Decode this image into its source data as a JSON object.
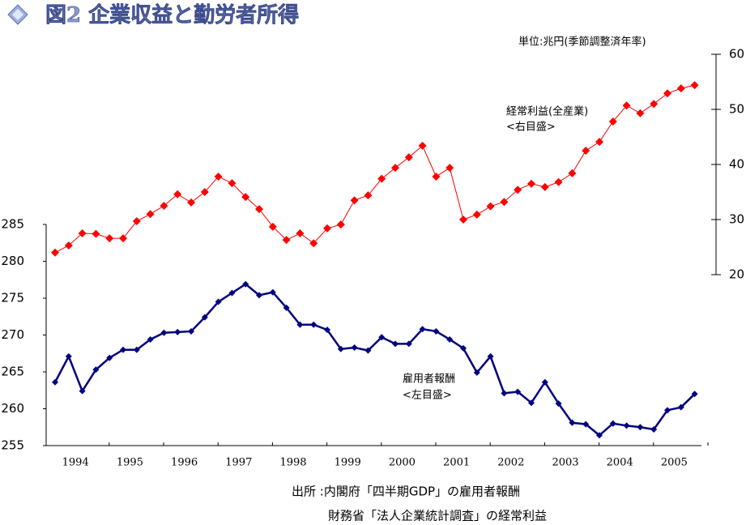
{
  "chart_data": {
    "type": "line",
    "title": "図2 企業収益と勤労者所得",
    "unit_note": "単位:兆円(季節調整済年率)",
    "source_lines": [
      "出所 :内閣府「四半期GDP」の雇用者報酬",
      "財務省「法人企業統計調査」の経常利益"
    ],
    "categories": [
      null,
      "1994",
      null,
      null,
      null,
      "1995",
      null,
      null,
      null,
      "1996",
      null,
      null,
      null,
      "1997",
      null,
      null,
      null,
      "1998",
      null,
      null,
      null,
      "1999",
      null,
      null,
      null,
      "2000",
      null,
      null,
      null,
      "2001",
      null,
      null,
      null,
      "2002",
      null,
      null,
      null,
      "2003",
      null,
      null,
      null,
      "2004",
      null,
      null,
      null,
      "2005",
      null,
      null
    ],
    "series": [
      {
        "name": "経常利益(全産業)",
        "annotation": "<右目盛>",
        "color": "#ff0000",
        "axis": "y2",
        "values": [
          24.0,
          25.3,
          27.5,
          27.4,
          26.6,
          26.6,
          29.7,
          31.0,
          32.5,
          34.6,
          33.1,
          35.0,
          37.8,
          36.6,
          34.1,
          31.9,
          28.7,
          26.3,
          27.5,
          25.7,
          28.4,
          29.1,
          33.5,
          34.4,
          37.4,
          39.4,
          41.3,
          43.4,
          37.8,
          39.4,
          30.0,
          30.9,
          32.4,
          33.2,
          35.4,
          36.5,
          35.9,
          36.8,
          38.4,
          42.5,
          44.1,
          47.8,
          50.7,
          49.3,
          51.0,
          52.9,
          53.8,
          54.4
        ]
      },
      {
        "name": "雇用者報酬",
        "annotation": "<左目盛>",
        "color": "#000080",
        "values": [
          263.6,
          267.1,
          262.4,
          265.3,
          266.9,
          268.0,
          268.0,
          269.4,
          270.3,
          270.4,
          270.5,
          272.4,
          274.5,
          275.7,
          276.9,
          275.4,
          275.8,
          273.7,
          271.4,
          271.4,
          270.7,
          268.1,
          268.3,
          267.9,
          269.7,
          268.8,
          268.8,
          270.8,
          270.5,
          269.4,
          268.2,
          264.9,
          267.1,
          262.1,
          262.3,
          260.8,
          263.6,
          260.7,
          258.1,
          257.9,
          256.4,
          258.0,
          257.7,
          257.5,
          257.2,
          259.8,
          260.2,
          262.0
        ]
      }
    ],
    "ylim": [
      255,
      285
    ],
    "yticks": [
      255,
      260,
      265,
      270,
      275,
      280,
      285
    ],
    "y2lim": [
      20,
      60
    ],
    "y2ticks": [
      20,
      30,
      40,
      50,
      60
    ]
  }
}
